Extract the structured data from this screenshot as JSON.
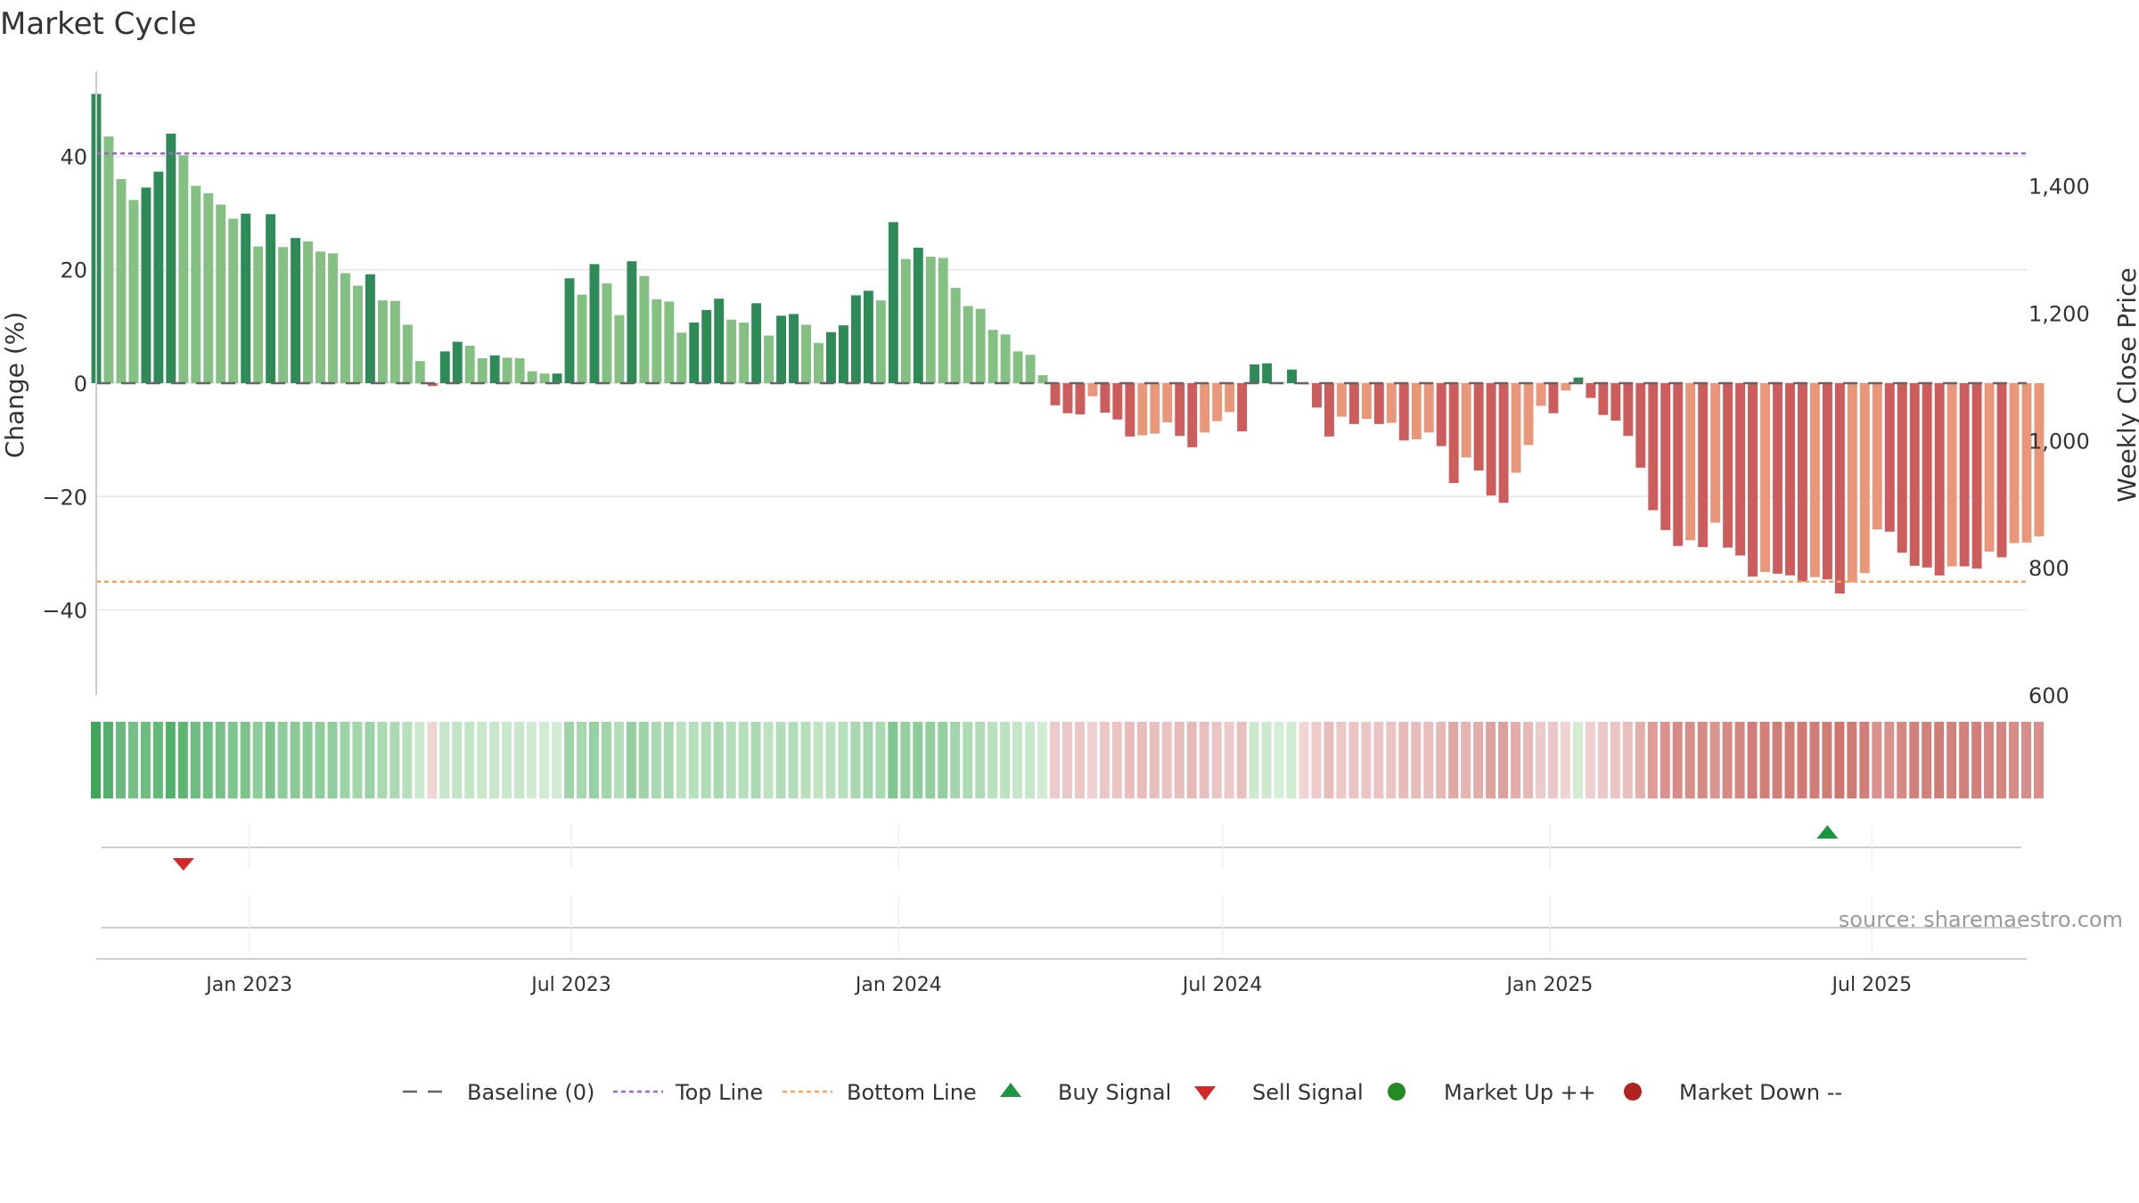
{
  "chart_data": {
    "type": "bar",
    "title": "Market Cycle",
    "ylabel_left": "Change (%)",
    "ylabel_right": "Weekly Close Price",
    "left_axis": {
      "ylim": [
        -55,
        55
      ],
      "ticks": [
        40,
        20,
        0,
        -20,
        -40
      ],
      "tick_labels": [
        "40",
        "20",
        "0",
        "−20",
        "−40"
      ]
    },
    "right_axis": {
      "ylim": [
        600,
        1580
      ],
      "ticks": [
        1400,
        1200,
        1000,
        800,
        600
      ],
      "tick_labels": [
        "1,400",
        "1,200",
        "1,000",
        "800",
        "600"
      ]
    },
    "x_axis": {
      "start": "2022-10-07",
      "end": "2025-09-26",
      "ticks": [
        "2023-01-01",
        "2023-07-01",
        "2024-01-01",
        "2024-07-01",
        "2025-01-01",
        "2025-07-01"
      ],
      "tick_labels": [
        "Jan 2023",
        "Jul 2023",
        "Jan 2024",
        "Jul 2024",
        "Jan 2025",
        "Jul 2025"
      ]
    },
    "top_line": 40.5,
    "bottom_line": -35,
    "weeks_start": "2022-10-07",
    "values": [
      51,
      43.5,
      36,
      32.3,
      34.5,
      37.3,
      44,
      40.2,
      34.8,
      33.5,
      31.5,
      29,
      29.9,
      24.1,
      29.8,
      24,
      25.6,
      25,
      23.2,
      22.9,
      19.4,
      17.2,
      19.2,
      14.6,
      14.5,
      10.3,
      3.9,
      -0.5,
      5.6,
      7.3,
      6.6,
      4.4,
      4.9,
      4.5,
      4.4,
      2.1,
      1.7,
      1.7,
      18.5,
      15.6,
      21,
      17.6,
      12,
      21.5,
      18.9,
      14.8,
      14.4,
      8.9,
      10.7,
      12.9,
      14.9,
      11.2,
      10.7,
      14.1,
      8.4,
      11.9,
      12.2,
      10.3,
      7.1,
      9,
      10.2,
      15.5,
      16.3,
      14.6,
      28.4,
      21.9,
      23.9,
      22.3,
      22.1,
      16.8,
      13.6,
      13.1,
      9.4,
      8.6,
      5.6,
      5,
      1.4,
      -3.9,
      -5.3,
      -5.5,
      -2.3,
      -5.2,
      -6.4,
      -9.4,
      -9.2,
      -8.9,
      -6.9,
      -9.3,
      -11.3,
      -8.7,
      -6.7,
      -5.1,
      -8.5,
      3.3,
      3.5,
      0.2,
      2.4,
      -0.2,
      -4.3,
      -9.4,
      -5.9,
      -7.2,
      -6.3,
      -7.2,
      -7,
      -10.1,
      -9.9,
      -8.7,
      -11.1,
      -17.6,
      -13.1,
      -15.4,
      -19.8,
      -21.1,
      -15.8,
      -10.9,
      -4,
      -5.3,
      -1.3,
      1,
      -2.6,
      -5.6,
      -6.6,
      -9.3,
      -14.9,
      -22.4,
      -25.9,
      -28.7,
      -27.7,
      -28.9,
      -24.6,
      -29,
      -30.4,
      -34.1,
      -33.3,
      -33.6,
      -33.9,
      -35,
      -34.2,
      -34.6,
      -37.1,
      -35.1,
      -33.5,
      -25.8,
      -26.2,
      -29.9,
      -32.2,
      -32.5,
      -33.9,
      -32.3,
      -32.3,
      -32.7,
      -29.7,
      -30.7,
      -28.2,
      -28.1,
      -27
    ],
    "weekly_close": [],
    "signals": [
      {
        "type": "sell",
        "date": "2022-11-25"
      },
      {
        "type": "buy",
        "date": "2025-06-06"
      }
    ],
    "source_text": "source: sharemaestro.com",
    "legend": [
      {
        "label": "Baseline (0)",
        "marker": "dash-gray"
      },
      {
        "label": "Top Line",
        "marker": "dotted-purple"
      },
      {
        "label": "Bottom Line",
        "marker": "dotted-orange"
      },
      {
        "label": "Buy Signal",
        "marker": "triangle-up-green"
      },
      {
        "label": "Sell Signal",
        "marker": "triangle-down-red"
      },
      {
        "label": "Market Up ++",
        "marker": "circle-green"
      },
      {
        "label": "Market Down --",
        "marker": "circle-red"
      }
    ],
    "colors": {
      "pos_dark": "#2e8b57",
      "pos_light": "#85c083",
      "neg_dark": "#cd5c5c",
      "neg_light": "#e9967a",
      "top_line": "#9966cc",
      "bottom_line": "#f4a460",
      "buy": "#1a9641",
      "sell": "#d62728",
      "market_up": "#228b22",
      "market_down": "#b22222",
      "baseline": "#666666"
    }
  }
}
